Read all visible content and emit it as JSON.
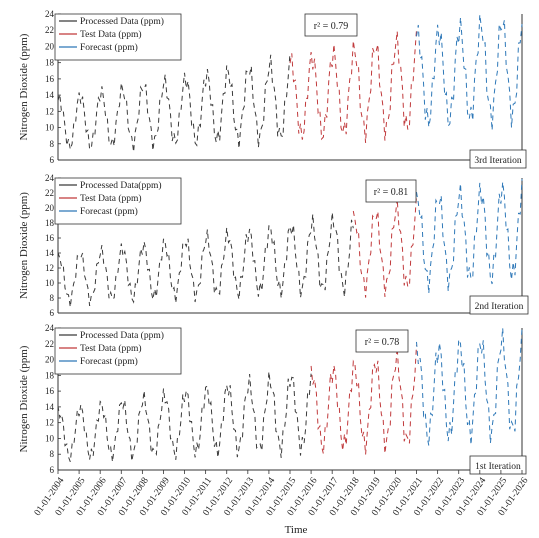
{
  "figure": {
    "x_title": "Time",
    "x_tick_labels": [
      "01-01-2004",
      "01-01-2005",
      "01-01-2006",
      "01-01-2007",
      "01-01-2008",
      "01-01-2009",
      "01-01-2010",
      "01-01-2011",
      "01-01-2012",
      "01-01-2013",
      "01-01-2014",
      "01-01-2015",
      "01-01-2016",
      "01-01-2017",
      "01-01-2018",
      "01-01-2019",
      "01-01-2020",
      "01-01-2021",
      "01-01-2022",
      "01-01-2023",
      "01-01-2024",
      "01-01-2025",
      "01-01-2026"
    ]
  },
  "colors": {
    "processed": "#3a3a3a",
    "test": "#c0393b",
    "forecast": "#2e78b8"
  },
  "chart_data": [
    {
      "type": "line",
      "panel": "3rd Iteration",
      "ylabel": "Nitrogen Dioxide (ppm)",
      "xlabel": "",
      "ylim": [
        6,
        24
      ],
      "yticks": [
        6,
        8,
        10,
        12,
        14,
        16,
        18,
        20,
        22,
        24
      ],
      "xlim": [
        "01-01-2004",
        "01-01-2026"
      ],
      "r2_label": "r² = 0.79",
      "iteration_label": "3rd Iteration",
      "legend": [
        "Processed Data (ppm)",
        "Test Data (ppm)",
        "Forecast (ppm)"
      ],
      "legend_position": "top-left",
      "series": [
        {
          "name": "Processed Data (ppm)",
          "x_range": [
            "2004-01",
            "2015-01"
          ],
          "period_months": 12,
          "trend_start": 10.5,
          "trend_end": 13.5,
          "amplitude_start": 3.5,
          "amplitude_end": 5.5
        },
        {
          "name": "Test Data (ppm)",
          "x_range": [
            "2015-01",
            "2021-01"
          ],
          "period_months": 12,
          "trend_start": 13.5,
          "trend_end": 15.5,
          "amplitude_start": 5.5,
          "amplitude_end": 6.5
        },
        {
          "name": "Forecast (ppm)",
          "x_range": [
            "2021-01",
            "2026-01"
          ],
          "period_months": 12,
          "trend_start": 16,
          "trend_end": 17.5,
          "amplitude_start": 6.5,
          "amplitude_end": 7
        }
      ]
    },
    {
      "type": "line",
      "panel": "2nd Iteration",
      "ylabel": "Nitrogen Dioxide (ppm)",
      "xlabel": "",
      "ylim": [
        6,
        24
      ],
      "yticks": [
        6,
        8,
        10,
        12,
        14,
        16,
        18,
        20,
        22,
        24
      ],
      "xlim": [
        "01-01-2004",
        "01-01-2026"
      ],
      "r2_label": "r² = 0.81",
      "iteration_label": "2nd Iteration",
      "legend": [
        "Processed Data(ppm)",
        "Test Data (ppm)",
        "Forecast (ppm)"
      ],
      "legend_position": "top-left",
      "series": [
        {
          "name": "Processed Data(ppm)",
          "x_range": [
            "2004-01",
            "2018-01"
          ],
          "period_months": 12,
          "trend_start": 10.5,
          "trend_end": 14,
          "amplitude_start": 3.5,
          "amplitude_end": 5.5
        },
        {
          "name": "Test Data (ppm)",
          "x_range": [
            "2018-01",
            "2021-01"
          ],
          "period_months": 12,
          "trend_start": 14,
          "trend_end": 15,
          "amplitude_start": 5.5,
          "amplitude_end": 6.5
        },
        {
          "name": "Forecast (ppm)",
          "x_range": [
            "2021-01",
            "2026-01"
          ],
          "period_months": 12,
          "trend_start": 15.5,
          "trend_end": 17,
          "amplitude_start": 6.5,
          "amplitude_end": 7
        }
      ]
    },
    {
      "type": "line",
      "panel": "1st Iteration",
      "ylabel": "Nitrogen Dioxide (ppm)",
      "xlabel": "Time",
      "ylim": [
        6,
        24
      ],
      "yticks": [
        6,
        8,
        10,
        12,
        14,
        16,
        18,
        20,
        22,
        24
      ],
      "xlim": [
        "01-01-2004",
        "01-01-2026"
      ],
      "r2_label": "r² = 0.78",
      "iteration_label": "1st Iteration",
      "legend": [
        "Processed Data (ppm)",
        "Test Data (ppm)",
        "Forecast (ppm)"
      ],
      "legend_position": "top-left",
      "series": [
        {
          "name": "Processed Data (ppm)",
          "x_range": [
            "2004-01",
            "2016-01"
          ],
          "period_months": 12,
          "trend_start": 10.5,
          "trend_end": 13.5,
          "amplitude_start": 3.5,
          "amplitude_end": 5.5
        },
        {
          "name": "Test Data (ppm)",
          "x_range": [
            "2016-01",
            "2021-01"
          ],
          "period_months": 12,
          "trend_start": 13.5,
          "trend_end": 15,
          "amplitude_start": 5.5,
          "amplitude_end": 6.5
        },
        {
          "name": "Forecast (ppm)",
          "x_range": [
            "2021-01",
            "2026-01"
          ],
          "period_months": 12,
          "trend_start": 15.5,
          "trend_end": 17,
          "amplitude_start": 6.5,
          "amplitude_end": 7
        }
      ]
    }
  ]
}
